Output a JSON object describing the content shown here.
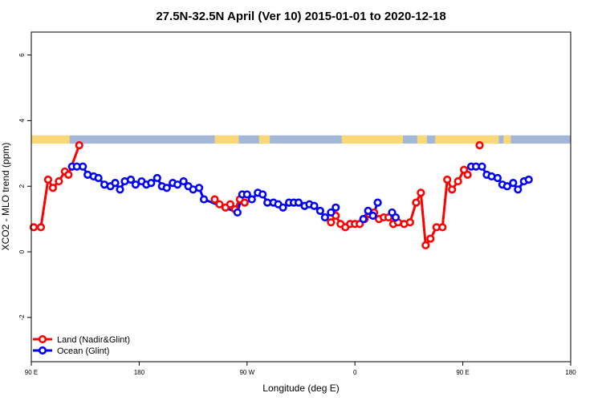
{
  "chart_data": {
    "type": "line",
    "title": "27.5N-32.5N April (Ver 10)   2015-01-01 to 2020-12-18",
    "xlabel": "Longitude (deg E)",
    "ylabel": "XCO2 - MLO trend (ppm)",
    "xlim": [
      90,
      540
    ],
    "ylim": [
      -3.35,
      6.7
    ],
    "xticks": [
      {
        "value": 90,
        "label": "90 E"
      },
      {
        "value": 180,
        "label": "180"
      },
      {
        "value": 270,
        "label": "90 W"
      },
      {
        "value": 360,
        "label": "0"
      },
      {
        "value": 450,
        "label": "90 E"
      },
      {
        "value": 540,
        "label": "180"
      }
    ],
    "yticks": [
      {
        "value": -2,
        "label": "-2"
      },
      {
        "value": 0,
        "label": "0"
      },
      {
        "value": 2,
        "label": "2"
      },
      {
        "value": 4,
        "label": "4"
      },
      {
        "value": 6,
        "label": "6"
      }
    ],
    "grid": false,
    "legend_position": "bottom-left",
    "landmask": {
      "y_range": [
        3.3,
        3.55
      ],
      "ocean_color": "#a3b8d8",
      "land_color": "#fbd877",
      "land_segments": [
        [
          90,
          122
        ],
        [
          243,
          263
        ],
        [
          280,
          289
        ],
        [
          349,
          400
        ],
        [
          412,
          420
        ],
        [
          427,
          480
        ],
        [
          484,
          490
        ]
      ]
    },
    "series": [
      {
        "name": "Land (Nadir&Glint)",
        "color": "#ff0000",
        "segments": [
          [
            [
              92,
              0.75
            ],
            [
              98,
              0.75
            ],
            [
              104,
              2.2
            ],
            [
              108,
              1.95
            ],
            [
              113,
              2.15
            ],
            [
              118,
              2.45
            ],
            [
              121,
              2.35
            ],
            [
              130,
              3.25
            ]
          ],
          [
            [
              243,
              1.6
            ],
            [
              247,
              1.45
            ],
            [
              252,
              1.35
            ],
            [
              256,
              1.45
            ],
            [
              260,
              1.3
            ],
            [
              264,
              1.6
            ],
            [
              268,
              1.5
            ]
          ],
          [
            [
              340,
              0.9
            ],
            [
              344,
              1.1
            ],
            [
              348,
              0.85
            ],
            [
              352,
              0.75
            ],
            [
              356,
              0.85
            ],
            [
              360,
              0.85
            ],
            [
              364,
              0.85
            ],
            [
              368,
              1.0
            ],
            [
              372,
              1.15
            ],
            [
              376,
              1.2
            ],
            [
              380,
              1.0
            ],
            [
              384,
              1.05
            ],
            [
              388,
              1.05
            ],
            [
              392,
              0.85
            ],
            [
              396,
              0.9
            ],
            [
              401,
              0.85
            ],
            [
              406,
              0.9
            ],
            [
              411,
              1.5
            ],
            [
              415,
              1.8
            ],
            [
              419,
              0.2
            ],
            [
              423,
              0.4
            ],
            [
              428,
              0.75
            ],
            [
              433,
              0.75
            ],
            [
              437,
              2.2
            ],
            [
              441,
              1.9
            ],
            [
              446,
              2.15
            ],
            [
              451,
              2.5
            ],
            [
              454,
              2.35
            ]
          ],
          [
            [
              464,
              3.25
            ]
          ]
        ]
      },
      {
        "name": "Ocean (Glint)",
        "color": "#0000ff",
        "segments": [
          [
            [
              124,
              2.6
            ],
            [
              128,
              2.6
            ],
            [
              133,
              2.6
            ],
            [
              137,
              2.35
            ],
            [
              142,
              2.3
            ],
            [
              146,
              2.25
            ],
            [
              151,
              2.05
            ],
            [
              156,
              2.0
            ],
            [
              160,
              2.1
            ],
            [
              164,
              1.9
            ],
            [
              168,
              2.15
            ],
            [
              173,
              2.2
            ],
            [
              177,
              2.05
            ],
            [
              182,
              2.15
            ],
            [
              186,
              2.05
            ],
            [
              190,
              2.1
            ],
            [
              195,
              2.25
            ],
            [
              199,
              2.0
            ],
            [
              203,
              1.95
            ],
            [
              208,
              2.1
            ],
            [
              212,
              2.05
            ],
            [
              217,
              2.15
            ],
            [
              221,
              2.0
            ],
            [
              225,
              1.9
            ],
            [
              230,
              1.95
            ],
            [
              234,
              1.6
            ],
            [
              262,
              1.2
            ],
            [
              266,
              1.75
            ],
            [
              270,
              1.75
            ],
            [
              274,
              1.6
            ],
            [
              279,
              1.8
            ],
            [
              283,
              1.75
            ],
            [
              287,
              1.5
            ],
            [
              292,
              1.5
            ],
            [
              296,
              1.45
            ],
            [
              300,
              1.35
            ],
            [
              305,
              1.5
            ],
            [
              309,
              1.5
            ],
            [
              313,
              1.5
            ],
            [
              318,
              1.4
            ],
            [
              322,
              1.45
            ],
            [
              326,
              1.4
            ],
            [
              331,
              1.25
            ],
            [
              335,
              1.05
            ],
            [
              340,
              1.2
            ],
            [
              344,
              1.35
            ]
          ],
          [
            [
              367,
              1.0
            ],
            [
              371,
              1.25
            ],
            [
              375,
              1.1
            ],
            [
              379,
              1.5
            ]
          ],
          [
            [
              391,
              1.2
            ],
            [
              394,
              1.05
            ]
          ],
          [
            [
              457,
              2.6
            ],
            [
              461,
              2.6
            ],
            [
              466,
              2.6
            ],
            [
              470,
              2.35
            ],
            [
              474,
              2.3
            ],
            [
              479,
              2.25
            ],
            [
              483,
              2.05
            ],
            [
              487,
              2.0
            ],
            [
              492,
              2.1
            ],
            [
              496,
              1.9
            ],
            [
              501,
              2.15
            ],
            [
              505,
              2.2
            ]
          ]
        ]
      }
    ]
  }
}
